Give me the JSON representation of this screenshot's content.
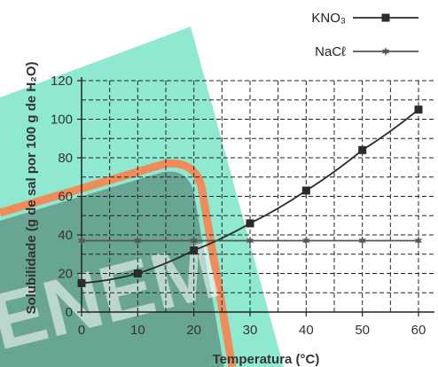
{
  "chart_data": {
    "type": "line",
    "title": "",
    "xlabel": "Temperatura (°C)",
    "ylabel": "Solubilidade (g de sal por 100 g de H₂O)",
    "xlim": [
      0,
      60
    ],
    "ylim": [
      0,
      120
    ],
    "x_ticks": [
      0,
      10,
      20,
      30,
      40,
      50,
      60
    ],
    "y_ticks": [
      0,
      20,
      40,
      60,
      80,
      100,
      120
    ],
    "grid": true,
    "legend_position": "top-right",
    "series": [
      {
        "name": "KNO₃",
        "marker": "square",
        "color": "#2b2b2b",
        "x": [
          0,
          10,
          20,
          30,
          40,
          50,
          60
        ],
        "y": [
          15,
          20,
          32,
          46,
          63,
          84,
          105
        ]
      },
      {
        "name": "NaCℓ",
        "marker": "star",
        "color": "#555555",
        "x": [
          0,
          10,
          20,
          30,
          40,
          50,
          60
        ],
        "y": [
          37,
          37,
          37,
          37,
          37,
          37,
          37
        ]
      }
    ],
    "background_decoration": {
      "teal_color": "#8fe8d0",
      "orange_color": "#ef8c5a",
      "dark_panel_color": "#4a6e60",
      "watermark_text": "ENEM"
    }
  }
}
